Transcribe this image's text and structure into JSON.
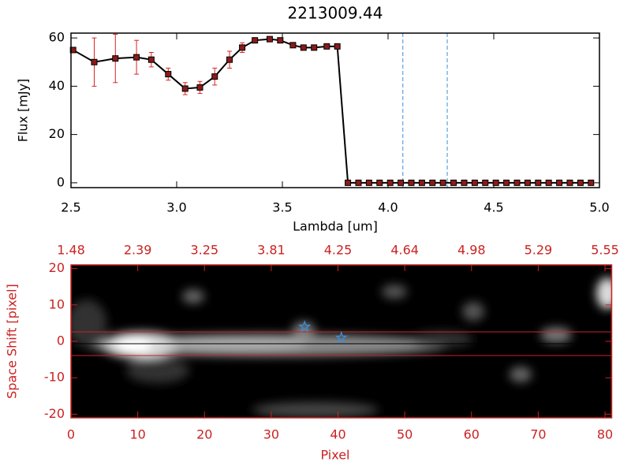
{
  "chart_data": [
    {
      "type": "line",
      "title": "2213009.44",
      "xlabel": "Lambda [um]",
      "ylabel": "Flux [mJy]",
      "x": [
        2.51,
        2.61,
        2.71,
        2.81,
        2.88,
        2.96,
        3.04,
        3.11,
        3.18,
        3.25,
        3.31,
        3.37,
        3.44,
        3.49,
        3.55,
        3.6,
        3.65,
        3.71,
        3.76,
        3.81,
        3.86,
        3.91,
        3.96,
        4.01,
        4.06,
        4.11,
        4.16,
        4.21,
        4.26,
        4.31,
        4.36,
        4.41,
        4.46,
        4.51,
        4.56,
        4.61,
        4.66,
        4.71,
        4.76,
        4.81,
        4.86,
        4.91,
        4.96
      ],
      "values": [
        55,
        50,
        51.5,
        52,
        51,
        45,
        39,
        39.5,
        44,
        51,
        56,
        59,
        59.5,
        59,
        57,
        56,
        56,
        56.5,
        56.5,
        0,
        0,
        0,
        0,
        0,
        0,
        0,
        0,
        0,
        0,
        0,
        0,
        0,
        0,
        0,
        0,
        0,
        0,
        0,
        0,
        0,
        0,
        0,
        0
      ],
      "errors": [
        1,
        10,
        10,
        7,
        3,
        2.5,
        2.5,
        2.5,
        3.5,
        3.5,
        2,
        1,
        1,
        1,
        1,
        1,
        1,
        1,
        1,
        0,
        0,
        0,
        0,
        0,
        0,
        0,
        0,
        0,
        0,
        0,
        0,
        0,
        0,
        0,
        0,
        0,
        0,
        0,
        0,
        0,
        0,
        0,
        0
      ],
      "color": "#000000",
      "marker_color": "#8b1a1a",
      "error_color": "#dd2222",
      "xlim": [
        2.5,
        5.0
      ],
      "ylim": [
        -2,
        62
      ],
      "xticks": [
        2.5,
        {
          "value": 3,
          "label": "3.0"
        },
        3.5,
        {
          "value": 4,
          "label": "4.0"
        },
        4.5,
        {
          "value": 5,
          "label": "5.0"
        }
      ],
      "yticks": [
        0,
        20,
        40,
        60
      ],
      "vlines": [
        4.07,
        4.28
      ],
      "vline_color": "#3b8fd9"
    },
    {
      "type": "image",
      "xlabel": "Pixel",
      "ylabel": "Space Shift [pixel]",
      "color": "#cc2222",
      "xlim": [
        0,
        81
      ],
      "ylim": [
        -21,
        21
      ],
      "xticks": [
        0,
        10,
        20,
        30,
        40,
        50,
        60,
        70,
        80
      ],
      "x2ticks": [
        {
          "value": 0,
          "label": "1.48"
        },
        {
          "value": 10,
          "label": "2.39"
        },
        {
          "value": 20,
          "label": "3.25"
        },
        {
          "value": 30,
          "label": "3.81"
        },
        {
          "value": 40,
          "label": "4.25"
        },
        {
          "value": 50,
          "label": "4.64"
        },
        {
          "value": 60,
          "label": "4.98"
        },
        {
          "value": 70,
          "label": "5.29"
        },
        {
          "value": 80,
          "label": "5.55"
        }
      ],
      "yticks": [
        -20,
        -10,
        0,
        10,
        20
      ],
      "hlines": [
        2.6,
        -3.9
      ],
      "center_line": -0.65,
      "stars": {
        "x": [
          35,
          40.5
        ],
        "y": [
          4,
          1
        ],
        "color": "#3b8fd9"
      }
    }
  ]
}
